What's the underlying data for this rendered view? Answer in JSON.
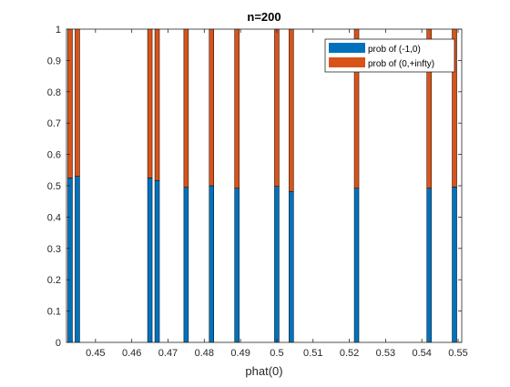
{
  "chart_data": {
    "type": "bar",
    "stacked": true,
    "title": "n=200",
    "xlabel": "phat(0)",
    "ylabel": "",
    "xlim": [
      0.442,
      0.551
    ],
    "ylim": [
      0,
      1
    ],
    "xticks": [
      "0.45",
      "0.46",
      "0.47",
      "0.48",
      "0.49",
      "0.5",
      "0.51",
      "0.52",
      "0.53",
      "0.54",
      "0.55"
    ],
    "yticks": [
      "0",
      "0.1",
      "0.2",
      "0.3",
      "0.4",
      "0.5",
      "0.6",
      "0.7",
      "0.8",
      "0.9",
      "1"
    ],
    "grid": false,
    "legend_position": "top-right",
    "x": [
      0.443,
      0.445,
      0.465,
      0.467,
      0.475,
      0.482,
      0.489,
      0.5,
      0.504,
      0.522,
      0.542,
      0.549
    ],
    "series": [
      {
        "name": "prob of (-1,0)",
        "color": "#0072BD",
        "values": [
          0.525,
          0.53,
          0.525,
          0.517,
          0.495,
          0.5,
          0.492,
          0.498,
          0.482,
          0.492,
          0.492,
          0.496
        ]
      },
      {
        "name": "prob of (0,+infty)",
        "color": "#D95319",
        "values": [
          0.475,
          0.47,
          0.475,
          0.483,
          0.505,
          0.5,
          0.508,
          0.502,
          0.518,
          0.508,
          0.508,
          0.504
        ]
      }
    ]
  }
}
